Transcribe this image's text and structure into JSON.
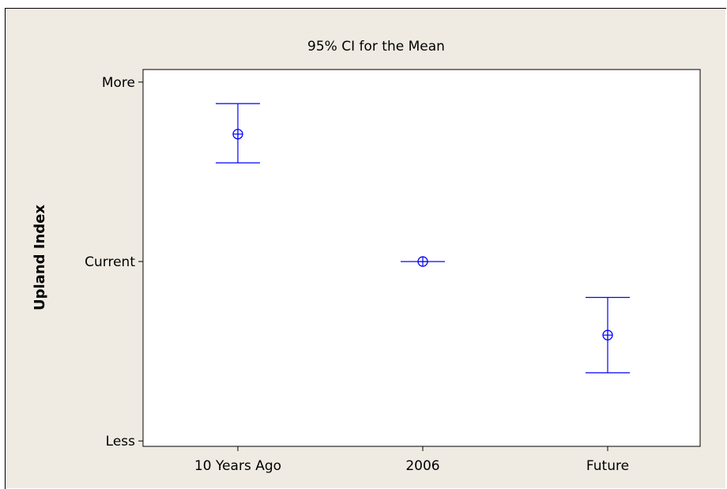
{
  "chart_data": {
    "type": "errorbar",
    "title": "95% CI for the Mean",
    "xlabel": "",
    "ylabel": "Upland Index",
    "categories": [
      "10 Years Ago",
      "2006",
      "Future"
    ],
    "y_ticks": [
      {
        "label": "More",
        "value": 1
      },
      {
        "label": "Current",
        "value": 0
      },
      {
        "label": "Less",
        "value": -1
      }
    ],
    "ylim": [
      -1.03,
      1.07
    ],
    "series": [
      {
        "mean": [
          0.71,
          0.0,
          -0.41
        ],
        "lower": [
          0.55,
          0.0,
          -0.62
        ],
        "upper": [
          0.88,
          0.0,
          -0.2
        ]
      }
    ],
    "marker_color": "#0000ff",
    "background_color": "#efebe2",
    "grid": false
  }
}
